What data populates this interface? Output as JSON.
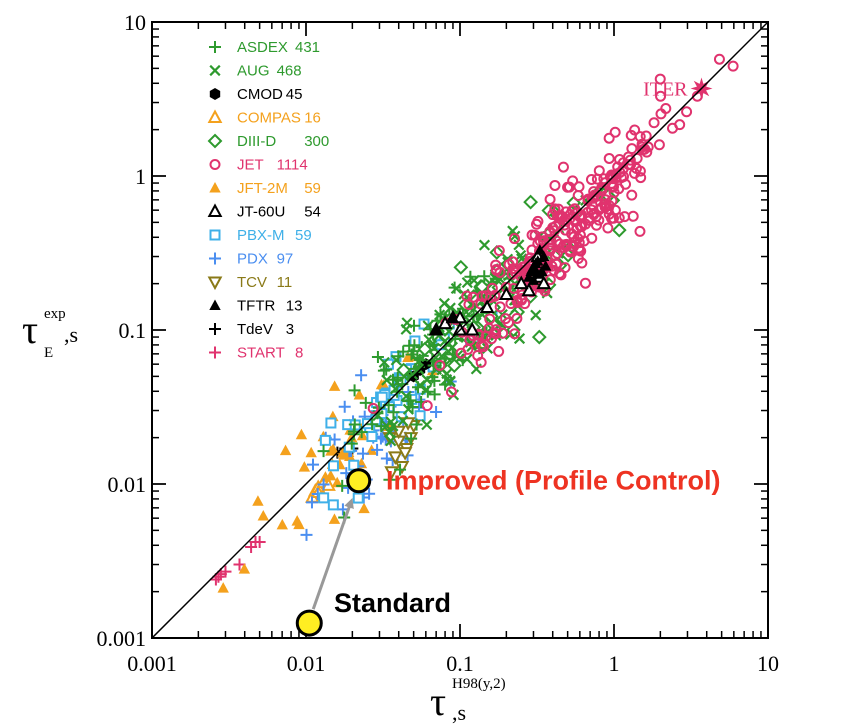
{
  "chart_data": {
    "type": "scatter",
    "x_scale": "log",
    "y_scale": "log",
    "xlim": [
      0.001,
      10
    ],
    "ylim": [
      0.001,
      10
    ],
    "x_ticks": [
      "0.001",
      "0.01",
      "0.1",
      "1",
      "10"
    ],
    "y_ticks": [
      "0.001",
      "0.01",
      "0.1",
      "1",
      "10"
    ],
    "xlabel": {
      "symbol": "τ",
      "sup": "H98(y,2)",
      "sub": ",s"
    },
    "ylabel": {
      "symbol": "τ",
      "sup": "exp",
      "sub": "E",
      "suffix": ",s"
    },
    "reference_line": "y = x",
    "legend_position": "top-left",
    "series": [
      {
        "name": "ASDEX",
        "count": "431",
        "color": "#2e9a2e",
        "marker": "plus"
      },
      {
        "name": "AUG",
        "count": "468",
        "color": "#2e9a2e",
        "marker": "cross"
      },
      {
        "name": "CMOD",
        "count": "45",
        "color": "#000000",
        "marker": "hexagon-filled"
      },
      {
        "name": "COMPAS",
        "count": "16",
        "color": "#f4a11d",
        "marker": "triangle-open"
      },
      {
        "name": "DIII-D",
        "count": "300",
        "color": "#2e9a2e",
        "marker": "diamond-open"
      },
      {
        "name": "JET",
        "count": "1114",
        "color": "#e0336e",
        "marker": "circle-open"
      },
      {
        "name": "JFT-2M",
        "count": "59",
        "color": "#f4a11d",
        "marker": "triangle-filled"
      },
      {
        "name": "JT-60U",
        "count": "54",
        "color": "#000000",
        "marker": "triangle-open"
      },
      {
        "name": "PBX-M",
        "count": "59",
        "color": "#3fb0e8",
        "marker": "square-open"
      },
      {
        "name": "PDX",
        "count": "97",
        "color": "#4a8ef0",
        "marker": "plus"
      },
      {
        "name": "TCV",
        "count": "11",
        "color": "#8a7a18",
        "marker": "triangle-down-open"
      },
      {
        "name": "TFTR",
        "count": "13",
        "color": "#000000",
        "marker": "triangle-filled"
      },
      {
        "name": "TdeV",
        "count": "3",
        "color": "#000000",
        "marker": "plus"
      },
      {
        "name": "START",
        "count": "8",
        "color": "#e0336e",
        "marker": "plus"
      }
    ],
    "clusters": [
      {
        "series": "START",
        "points": [
          [
            0.0026,
            0.0024
          ],
          [
            0.0028,
            0.0026
          ],
          [
            0.003,
            0.0027
          ],
          [
            0.0037,
            0.003
          ],
          [
            0.0044,
            0.0039
          ],
          [
            0.0047,
            0.0042
          ],
          [
            0.005,
            0.0042
          ],
          [
            0.0027,
            0.0025
          ]
        ]
      },
      {
        "series": "TdeV",
        "points": [
          [
            0.016,
            0.016
          ],
          [
            0.018,
            0.017
          ],
          [
            0.02,
            0.017
          ]
        ]
      },
      {
        "series": "COMPAS",
        "points": [
          [
            0.011,
            0.0082
          ],
          [
            0.0115,
            0.009
          ],
          [
            0.012,
            0.0095
          ],
          [
            0.013,
            0.0102
          ],
          [
            0.014,
            0.0098
          ],
          [
            0.012,
            0.0088
          ]
        ]
      },
      {
        "series": "JFT-2M",
        "cluster": {
          "cx": 0.018,
          "cy": 0.018,
          "sx": 0.3,
          "sy": 0.35,
          "rho": 0.8,
          "n": 45
        }
      },
      {
        "series": "PDX",
        "cluster": {
          "cx": 0.028,
          "cy": 0.022,
          "sx": 0.25,
          "sy": 0.3,
          "rho": 0.75,
          "n": 55
        }
      },
      {
        "series": "PBX-M",
        "cluster": {
          "cx": 0.04,
          "cy": 0.04,
          "sx": 0.22,
          "sy": 0.28,
          "rho": 0.85,
          "n": 50
        }
      },
      {
        "series": "TCV",
        "points": [
          [
            0.035,
            0.02
          ],
          [
            0.04,
            0.019
          ],
          [
            0.045,
            0.017
          ],
          [
            0.038,
            0.015
          ],
          [
            0.042,
            0.013
          ],
          [
            0.036,
            0.012
          ],
          [
            0.048,
            0.02
          ],
          [
            0.05,
            0.024
          ],
          [
            0.04,
            0.022
          ],
          [
            0.044,
            0.016
          ],
          [
            0.046,
            0.025
          ]
        ]
      },
      {
        "series": "CMOD",
        "points": [
          [
            0.05,
            0.05
          ],
          [
            0.055,
            0.055
          ],
          [
            0.06,
            0.06
          ]
        ]
      },
      {
        "series": "ASDEX",
        "cluster": {
          "cx": 0.06,
          "cy": 0.06,
          "sx": 0.28,
          "sy": 0.32,
          "rho": 0.85,
          "n": 90
        }
      },
      {
        "series": "AUG",
        "cluster": {
          "cx": 0.1,
          "cy": 0.09,
          "sx": 0.3,
          "sy": 0.35,
          "rho": 0.85,
          "n": 120
        }
      },
      {
        "series": "DIII-D",
        "cluster": {
          "cx": 0.2,
          "cy": 0.2,
          "sx": 0.3,
          "sy": 0.3,
          "rho": 0.85,
          "n": 60
        }
      },
      {
        "series": "JET",
        "cluster": {
          "cx": 0.45,
          "cy": 0.4,
          "sx": 0.35,
          "sy": 0.38,
          "rho": 0.92,
          "n": 300
        }
      },
      {
        "series": "JT-60U",
        "points": [
          [
            0.07,
            0.1
          ],
          [
            0.08,
            0.11
          ],
          [
            0.09,
            0.12
          ],
          [
            0.1,
            0.1
          ],
          [
            0.12,
            0.1
          ],
          [
            0.15,
            0.14
          ],
          [
            0.2,
            0.17
          ],
          [
            0.28,
            0.18
          ],
          [
            0.3,
            0.25
          ],
          [
            0.33,
            0.22
          ],
          [
            0.35,
            0.2
          ],
          [
            0.25,
            0.2
          ],
          [
            0.32,
            0.3
          ],
          [
            0.1,
            0.12
          ]
        ]
      },
      {
        "series": "TFTR",
        "points": [
          [
            0.07,
            0.1
          ],
          [
            0.09,
            0.12
          ],
          [
            0.3,
            0.25
          ],
          [
            0.32,
            0.28
          ],
          [
            0.35,
            0.3
          ],
          [
            0.34,
            0.24
          ],
          [
            0.28,
            0.22
          ],
          [
            0.3,
            0.21
          ],
          [
            0.33,
            0.33
          ],
          [
            0.36,
            0.26
          ],
          [
            0.31,
            0.27
          ],
          [
            0.29,
            0.24
          ],
          [
            0.32,
            0.23
          ]
        ]
      },
      {
        "series": "ITER",
        "points": [
          [
            3.7,
            3.7
          ]
        ]
      }
    ],
    "annotations": {
      "iter": {
        "label": "ITER",
        "x": 3.7,
        "y": 3.7,
        "color": "#e0336e"
      },
      "improved": {
        "label": "Improved (Profile Control)",
        "x": 0.022,
        "y": 0.0105,
        "color": "#ee3322"
      },
      "standard": {
        "label": "Standard",
        "x": 0.0105,
        "y": 0.00125,
        "color": "#000000"
      }
    }
  }
}
